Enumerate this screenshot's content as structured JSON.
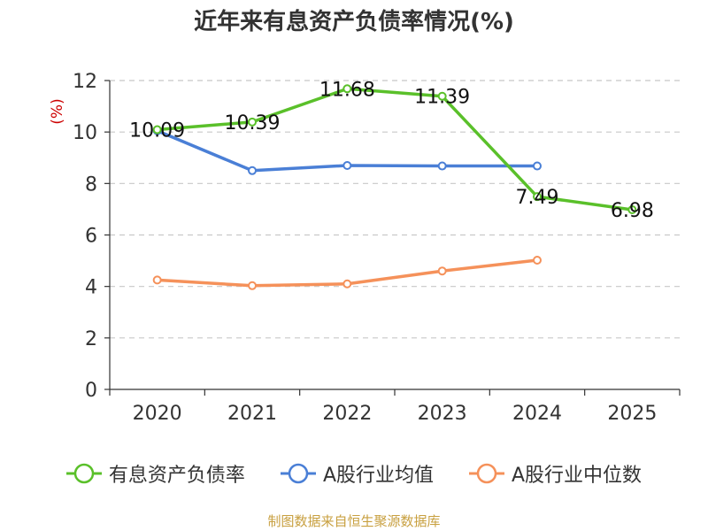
{
  "chart_data": {
    "type": "line",
    "title": "近年来有息资产负债率情况(%)",
    "ylabel": "(%)",
    "xlabel": "",
    "ylim": [
      0,
      12
    ],
    "yticks": [
      0,
      2,
      4,
      6,
      8,
      10,
      12
    ],
    "categories": [
      "2020",
      "2021",
      "2022",
      "2023",
      "2024",
      "2025"
    ],
    "grid": "horizontal-dashed",
    "legend_position": "bottom",
    "series": [
      {
        "name": "有息资产负债率",
        "color": "#5ac02a",
        "values": [
          10.09,
          10.39,
          11.68,
          11.39,
          7.49,
          6.98
        ],
        "labels": [
          "10.09",
          "10.39",
          "11.68",
          "11.39",
          "7.49",
          "6.98"
        ]
      },
      {
        "name": "A股行业均值",
        "color": "#4a7fd6",
        "values": [
          10.05,
          8.5,
          8.7,
          8.68,
          8.68,
          null
        ]
      },
      {
        "name": "A股行业中位数",
        "color": "#f5915a",
        "values": [
          4.25,
          4.03,
          4.1,
          4.6,
          5.02,
          null
        ]
      }
    ]
  },
  "source": "制图数据来自恒生聚源数据库"
}
